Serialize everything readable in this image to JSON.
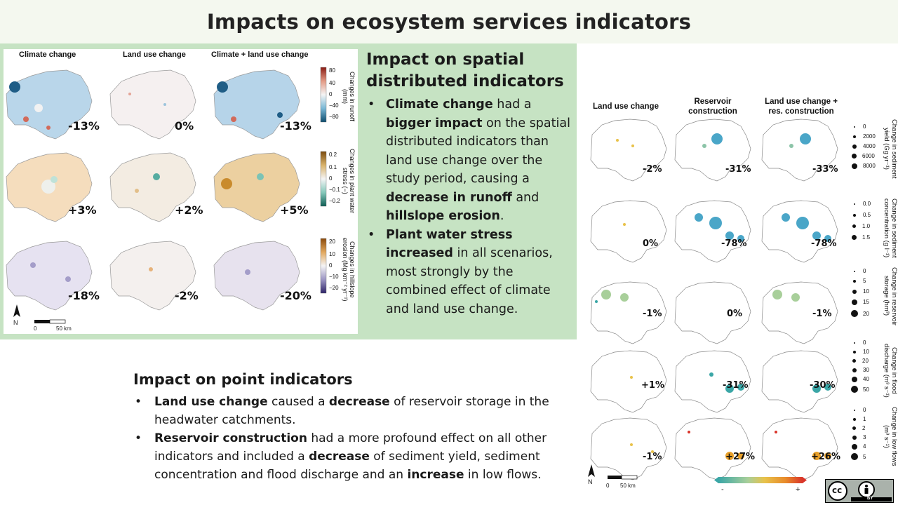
{
  "title": "Impacts on ecosystem services indicators",
  "map_panel": {
    "columns": [
      "Climate change",
      "Land use change",
      "Climate + land use change"
    ],
    "rows": [
      {
        "legend_title": "Changes in runoff (mm)",
        "ticks": [
          "80",
          "40",
          "0",
          "−40",
          "−80"
        ],
        "values": [
          "-13%",
          "0%",
          "-13%"
        ]
      },
      {
        "legend_title": "Changes in plant water stress (−)",
        "ticks": [
          "0.2",
          "0.1",
          "0",
          "−0.1",
          "−0.2"
        ],
        "values": [
          "+3%",
          "+2%",
          "+5%"
        ]
      },
      {
        "legend_title": "Changes in hillslope erosion (Mg km⁻² yr⁻¹)",
        "ticks": [
          "20",
          "10",
          "0",
          "−10",
          "−20"
        ],
        "values": [
          "-18%",
          "-2%",
          "-20%"
        ]
      }
    ],
    "north": "N",
    "scale_labels": [
      "0",
      "50 km"
    ]
  },
  "spatial": {
    "heading_line1": "Impact on spatial",
    "heading_line2": "distributed indicators",
    "bullet": "•",
    "b1_parts": [
      "Climate change",
      " had a ",
      "bigger impact",
      " on the spatial distributed indicators than land use change over the study period, causing a ",
      "decrease in runoff",
      " and ",
      "hillslope erosion",
      "."
    ],
    "b2_parts": [
      "Plant water stress increased",
      " in all scenarios, most strongly by the combined effect of climate and land use change."
    ]
  },
  "point": {
    "heading": "Impact on point indicators",
    "bullet": "•",
    "b1_parts": [
      "Land use change",
      " caused a ",
      "decrease",
      " of reservoir storage in the headwater catchments."
    ],
    "b2_parts": [
      "Reservoir construction",
      " had a more profound effect on all other indicators and included a ",
      "decrease",
      " of sediment yield, sediment concentration and flood discharge and an ",
      "increase",
      " in low flows."
    ]
  },
  "right_panel": {
    "columns": [
      "Land use change",
      "Reservoir construction",
      "Land use change + res. construction"
    ],
    "rows": [
      {
        "legend_title": "Change in sediment yield (Gg yr⁻¹)",
        "ticks": [
          "0",
          "2000",
          "4000",
          "6000",
          "8000"
        ],
        "values": [
          "-2%",
          "-31%",
          "-33%"
        ]
      },
      {
        "legend_title": "Change in sediment concentration (g l⁻¹)",
        "ticks": [
          "0.0",
          "0.5",
          "1.0",
          "1.5"
        ],
        "values": [
          "0%",
          "-78%",
          "-78%"
        ]
      },
      {
        "legend_title": "Change in reservoir storage (hm³)",
        "ticks": [
          "0",
          "5",
          "10",
          "15",
          "20"
        ],
        "values": [
          "-1%",
          "0%",
          "-1%"
        ]
      },
      {
        "legend_title": "Change in flood discharge (m³ s⁻¹)",
        "ticks": [
          "0",
          "10",
          "20",
          "30",
          "40",
          "50"
        ],
        "values": [
          "+1%",
          "-31%",
          "-30%"
        ]
      },
      {
        "legend_title": "Change in low flows (m³ s⁻¹)",
        "ticks": [
          "0",
          "1",
          "2",
          "3",
          "4",
          "5"
        ],
        "values": [
          "-1%",
          "+27%",
          "+26%"
        ]
      }
    ],
    "north": "N",
    "scale_labels": [
      "0",
      "50 km"
    ],
    "ramp_minus": "-",
    "ramp_plus": "+"
  },
  "license": {
    "cc": "cc",
    "by": "BY"
  },
  "colors": {
    "green_box": "#c6e3c3",
    "blue": "#4a9cc9",
    "orange": "#e39a2c",
    "teal": "#3ea0b5"
  }
}
